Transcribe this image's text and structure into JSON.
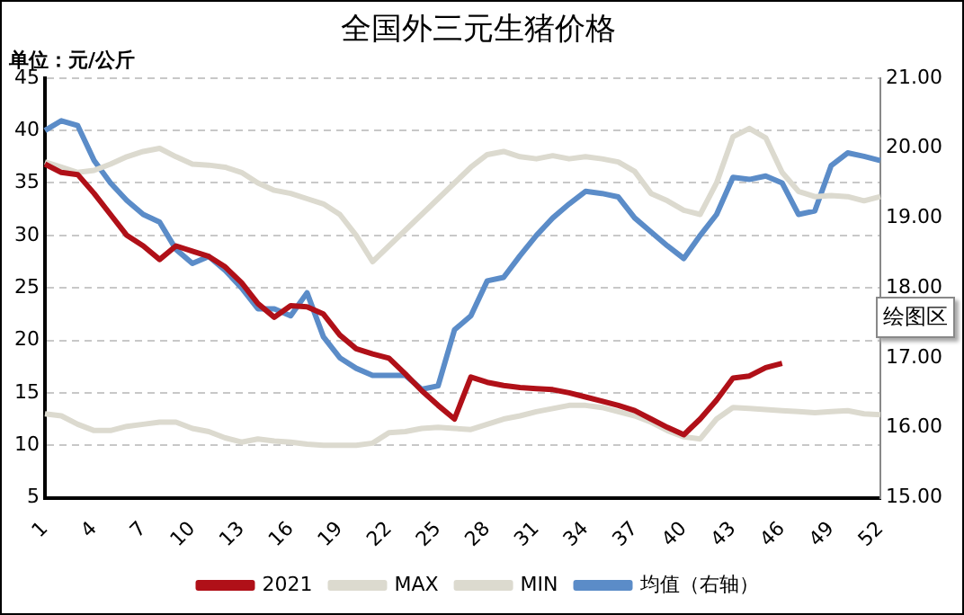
{
  "chart_data": {
    "type": "line",
    "title": "全国外三元生猪价格",
    "ylabel": "单位：元/公斤",
    "categories": [
      "1",
      null,
      null,
      "4",
      null,
      null,
      "7",
      null,
      null,
      "10",
      null,
      null,
      "13",
      null,
      null,
      "16",
      null,
      null,
      "19",
      null,
      null,
      "22",
      null,
      null,
      "25",
      null,
      null,
      "28",
      null,
      null,
      "31",
      null,
      null,
      "34",
      null,
      null,
      "37",
      null,
      null,
      "40",
      null,
      null,
      "43",
      null,
      null,
      "46",
      null,
      null,
      "49",
      null,
      null,
      "52"
    ],
    "series": [
      {
        "name": "2021",
        "color": "#b01018",
        "values": [
          36.8,
          36,
          35.8,
          34,
          32,
          30,
          29,
          27.7,
          29,
          28.5,
          28,
          27,
          25.5,
          23.5,
          22.2,
          23.3,
          23.2,
          22.5,
          20.5,
          19.2,
          18.7,
          18.3,
          16.8,
          15.2,
          13.8,
          12.5,
          16.5,
          16,
          15.7,
          15.5,
          15.4,
          15.3,
          15,
          14.6,
          14.2,
          13.8,
          13.3,
          12.5,
          11.7,
          11,
          12.5,
          14.3,
          16.4,
          16.6,
          17.4,
          17.8,
          null,
          null,
          null,
          null,
          null,
          null
        ]
      },
      {
        "name": "MAX",
        "color": "#dcdacf",
        "values": [
          37,
          36.5,
          36,
          36.2,
          36.8,
          37.5,
          38,
          38.3,
          37.5,
          36.8,
          36.7,
          36.5,
          36,
          35,
          34.3,
          34,
          33.5,
          33,
          32,
          30,
          27.5,
          29,
          30.5,
          32,
          33.5,
          35,
          36.5,
          37.7,
          38,
          37.5,
          37.3,
          37.6,
          37.3,
          37.5,
          37.3,
          37,
          36.1,
          34,
          33.3,
          32.4,
          32,
          35,
          39.4,
          40.2,
          39.3,
          36,
          34.2,
          33.7,
          33.8,
          33.7,
          33.3,
          33.7
        ]
      },
      {
        "name": "MIN",
        "color": "#dcdacf",
        "values": [
          13,
          12.8,
          12,
          11.4,
          11.4,
          11.8,
          12,
          12.2,
          12.2,
          11.6,
          11.3,
          10.7,
          10.3,
          10.6,
          10.4,
          10.3,
          10.1,
          10,
          10,
          10,
          10.2,
          11.2,
          11.3,
          11.6,
          11.7,
          11.6,
          11.5,
          12,
          12.5,
          12.8,
          13.2,
          13.5,
          13.8,
          13.8,
          13.6,
          13.2,
          12.8,
          12.2,
          11.4,
          10.8,
          10.6,
          12.5,
          13.6,
          13.5,
          13.4,
          13.3,
          13.2,
          13.1,
          13.2,
          13.3,
          13,
          12.9
        ]
      },
      {
        "name": "均值（右轴）",
        "color": "#5b8cc8",
        "axis": "y2",
        "values": [
          20.25,
          20.39,
          20.32,
          19.82,
          19.5,
          19.25,
          19.05,
          18.94,
          18.55,
          18.35,
          18.45,
          18.25,
          18,
          17.7,
          17.7,
          17.6,
          17.93,
          17.3,
          17,
          16.85,
          16.75,
          16.75,
          16.75,
          16.55,
          16.6,
          17.4,
          17.6,
          18.1,
          18.15,
          18.46,
          18.75,
          19,
          19.2,
          19.38,
          19.35,
          19.3,
          19,
          18.8,
          18.6,
          18.42,
          18.75,
          19.05,
          19.58,
          19.55,
          19.6,
          19.5,
          19.05,
          19.1,
          19.75,
          19.93,
          19.88,
          19.82
        ]
      }
    ],
    "ylim": [
      5,
      45
    ],
    "yticks": [
      5,
      10,
      15,
      20,
      25,
      30,
      35,
      40,
      45
    ],
    "y2lim": [
      15,
      21
    ],
    "y2ticks": [
      {
        "value": 15,
        "label": "15.00"
      },
      {
        "value": 16,
        "label": "16.00"
      },
      {
        "value": 17,
        "label": "17.00"
      },
      {
        "value": 18,
        "label": "18.00"
      },
      {
        "value": 19,
        "label": "19.00"
      },
      {
        "value": 20,
        "label": "20.00"
      },
      {
        "value": 21,
        "label": "21.00"
      }
    ],
    "grid": "y",
    "legend": "bottom",
    "marker": "none",
    "line_style": "solid",
    "annotations": [
      "绘图区"
    ]
  }
}
